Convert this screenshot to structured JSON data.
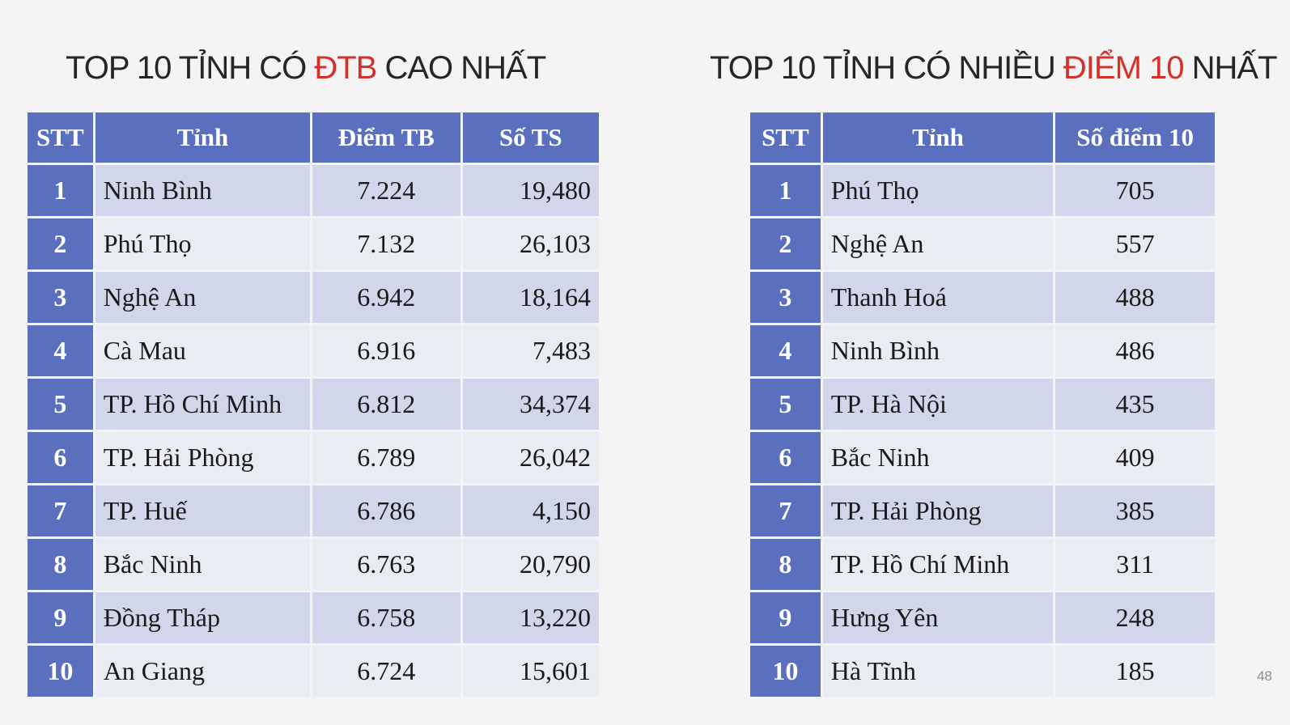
{
  "colors": {
    "header_bg": "#5b6fbf",
    "row_odd": "#d1d6ea",
    "row_even": "#eaecf4",
    "highlight": "#d6302b",
    "title_text": "#262626"
  },
  "left": {
    "title_pre": "TOP 10 TỈNH CÓ ",
    "title_hl": "ĐTB",
    "title_post": " CAO NHẤT",
    "headers": [
      "STT",
      "Tỉnh",
      "Điểm TB",
      "Số TS"
    ],
    "rows": [
      {
        "stt": "1",
        "tinh": "Ninh Bình",
        "diem_tb": "7.224",
        "so_ts": "19,480"
      },
      {
        "stt": "2",
        "tinh": "Phú Thọ",
        "diem_tb": "7.132",
        "so_ts": "26,103"
      },
      {
        "stt": "3",
        "tinh": "Nghệ An",
        "diem_tb": "6.942",
        "so_ts": "18,164"
      },
      {
        "stt": "4",
        "tinh": "Cà Mau",
        "diem_tb": "6.916",
        "so_ts": "7,483"
      },
      {
        "stt": "5",
        "tinh": "TP. Hồ Chí Minh",
        "diem_tb": "6.812",
        "so_ts": "34,374"
      },
      {
        "stt": "6",
        "tinh": "TP. Hải Phòng",
        "diem_tb": "6.789",
        "so_ts": "26,042"
      },
      {
        "stt": "7",
        "tinh": "TP. Huế",
        "diem_tb": "6.786",
        "so_ts": "4,150"
      },
      {
        "stt": "8",
        "tinh": "Bắc Ninh",
        "diem_tb": "6.763",
        "so_ts": "20,790"
      },
      {
        "stt": "9",
        "tinh": "Đồng Tháp",
        "diem_tb": "6.758",
        "so_ts": "13,220"
      },
      {
        "stt": "10",
        "tinh": "An Giang",
        "diem_tb": "6.724",
        "so_ts": "15,601"
      }
    ]
  },
  "right": {
    "title_pre": "TOP 10 TỈNH CÓ NHIỀU ",
    "title_hl": "ĐIỂM 10",
    "title_post": " NHẤT",
    "headers": [
      "STT",
      "Tỉnh",
      "Số điểm 10"
    ],
    "rows": [
      {
        "stt": "1",
        "tinh": "Phú Thọ",
        "so_diem_10": "705"
      },
      {
        "stt": "2",
        "tinh": "Nghệ An",
        "so_diem_10": "557"
      },
      {
        "stt": "3",
        "tinh": "Thanh Hoá",
        "so_diem_10": "488"
      },
      {
        "stt": "4",
        "tinh": "Ninh Bình",
        "so_diem_10": "486"
      },
      {
        "stt": "5",
        "tinh": "TP. Hà Nội",
        "so_diem_10": "435"
      },
      {
        "stt": "6",
        "tinh": "Bắc Ninh",
        "so_diem_10": "409"
      },
      {
        "stt": "7",
        "tinh": "TP. Hải Phòng",
        "so_diem_10": "385"
      },
      {
        "stt": "8",
        "tinh": "TP. Hồ Chí Minh",
        "so_diem_10": "311"
      },
      {
        "stt": "9",
        "tinh": "Hưng Yên",
        "so_diem_10": "248"
      },
      {
        "stt": "10",
        "tinh": "Hà Tĩnh",
        "so_diem_10": "185"
      }
    ]
  },
  "page_number": "48"
}
